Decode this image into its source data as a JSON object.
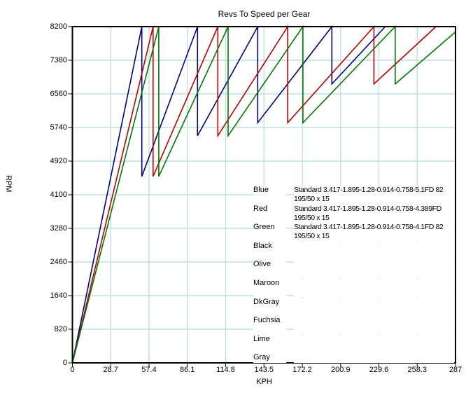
{
  "chart_data": {
    "type": "line",
    "title": "Revs To Speed per Gear",
    "xlabel": "KPH",
    "ylabel": "RPM",
    "xlim": [
      0,
      287
    ],
    "ylim": [
      0,
      8200
    ],
    "x_ticks": [
      0,
      28.7,
      57.4,
      86.1,
      114.8,
      143.5,
      172.2,
      200.9,
      229.6,
      258.3,
      287
    ],
    "y_ticks": [
      0,
      820,
      1640,
      2460,
      3280,
      4100,
      4920,
      5740,
      6560,
      7380,
      8200
    ],
    "grid": true,
    "grid_color": "#bfe2e2",
    "axis_color": "#000000",
    "redline_rpm": 8200,
    "rpm_per_kph_per_overall_ratio": 9.05,
    "gear_ratios": [
      3.417,
      1.895,
      1.28,
      0.914,
      0.758
    ],
    "tire": "195/50 x 15",
    "series": [
      {
        "name": "Blue",
        "color": "#000090",
        "final_drive": 5.1
      },
      {
        "name": "Red",
        "color": "#c00000",
        "final_drive": 4.389
      },
      {
        "name": "Green",
        "color": "#007a00",
        "final_drive": 4.1
      }
    ],
    "legend_position": "inside-right",
    "legend": [
      {
        "name": "Blue",
        "line1": "Standard 3.417-1.895-1.28-0.914-0.758-5.1FD 82",
        "line2": "195/50 x 15"
      },
      {
        "name": "Red",
        "line1": "Standard 3.417-1.895-1.28-0.914-0.758-4.389FD",
        "line2": "195/50 x 15"
      },
      {
        "name": "Green",
        "line1": "Standard 3.417-1.895-1.28-0.914-0.758-4.1FD 82",
        "line2": "195/50 x 15"
      },
      {
        "name": "Black",
        "line1": "",
        "line2": ""
      },
      {
        "name": "Olive",
        "line1": "",
        "line2": ""
      },
      {
        "name": "Maroon",
        "line1": "",
        "line2": ""
      },
      {
        "name": "DkGray",
        "line1": "",
        "line2": ""
      },
      {
        "name": "Fuchsia",
        "line1": "",
        "line2": ""
      },
      {
        "name": "Lime",
        "line1": "",
        "line2": ""
      },
      {
        "name": "Gray",
        "line1": "",
        "line2": ""
      }
    ]
  }
}
